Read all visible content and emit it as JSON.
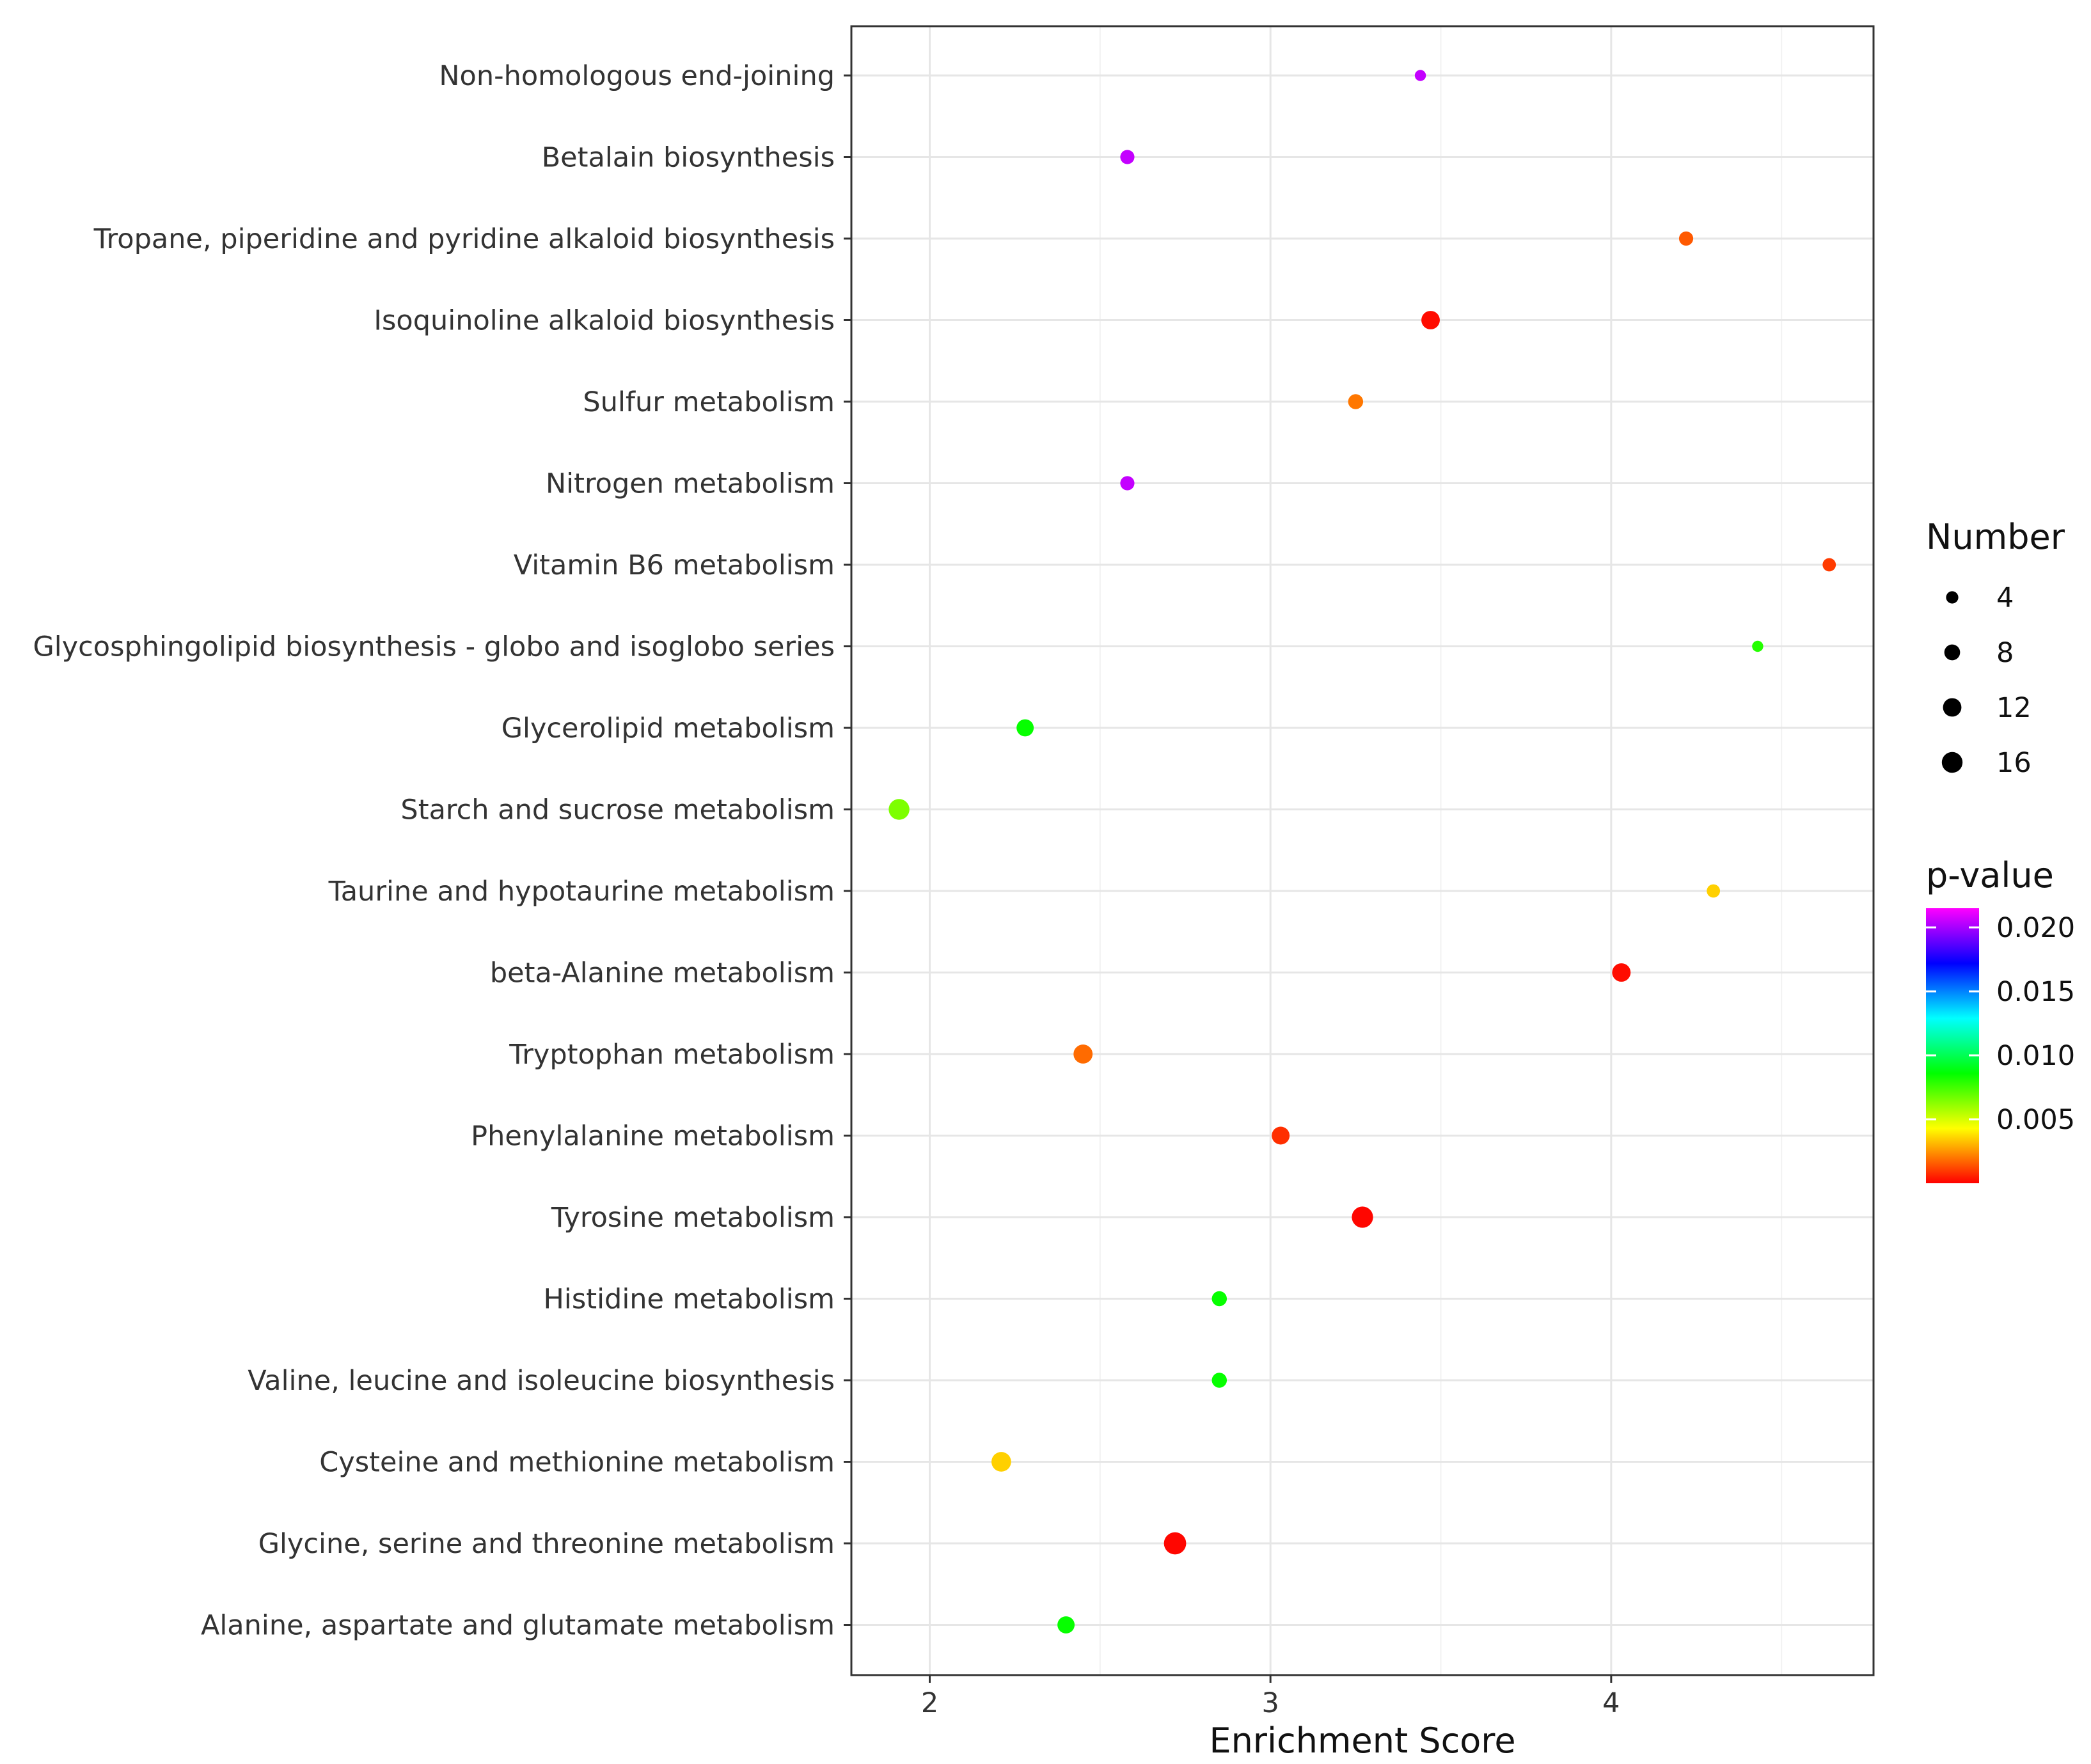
{
  "chart_data": {
    "type": "scatter",
    "title": "",
    "xlabel": "Enrichment Score",
    "ylabel": "",
    "xlim": [
      1.77,
      4.77
    ],
    "x_ticks": [
      2,
      3,
      4
    ],
    "x_tick_labels": [
      "2",
      "3",
      "4"
    ],
    "x_minor_ticks": [
      2.5,
      3.5,
      4.5
    ],
    "grid": true,
    "categories": [
      "Non-homologous end-joining",
      "Betalain biosynthesis",
      "Tropane, piperidine and pyridine alkaloid biosynthesis",
      "Isoquinoline alkaloid biosynthesis",
      "Sulfur metabolism",
      "Nitrogen metabolism",
      "Vitamin B6 metabolism",
      "Glycosphingolipid biosynthesis - globo and isoglobo series",
      "Glycerolipid metabolism",
      "Starch and sucrose metabolism",
      "Taurine and hypotaurine metabolism",
      "beta-Alanine metabolism",
      "Tryptophan metabolism",
      "Phenylalanine metabolism",
      "Tyrosine metabolism",
      "Histidine metabolism",
      "Valine, leucine and isoleucine biosynthesis",
      "Cysteine and methionine metabolism",
      "Glycine, serine and threonine metabolism",
      "Alanine, aspartate and glutamate metabolism"
    ],
    "points": [
      {
        "pathway": "Non-homologous end-joining",
        "enrichment_score": 3.44,
        "number": 3,
        "p_value": 0.0205
      },
      {
        "pathway": "Betalain biosynthesis",
        "enrichment_score": 2.58,
        "number": 6,
        "p_value": 0.0205
      },
      {
        "pathway": "Tropane, piperidine and pyridine alkaloid biosynthesis",
        "enrichment_score": 4.22,
        "number": 6,
        "p_value": 0.0015
      },
      {
        "pathway": "Isoquinoline alkaloid biosynthesis",
        "enrichment_score": 3.47,
        "number": 12,
        "p_value": 0.0002
      },
      {
        "pathway": "Sulfur metabolism",
        "enrichment_score": 3.25,
        "number": 7,
        "p_value": 0.002
      },
      {
        "pathway": "Nitrogen metabolism",
        "enrichment_score": 2.58,
        "number": 6,
        "p_value": 0.0205
      },
      {
        "pathway": "Vitamin B6 metabolism",
        "enrichment_score": 4.64,
        "number": 5,
        "p_value": 0.001
      },
      {
        "pathway": "Glycosphingolipid biosynthesis - globo and isoglobo series",
        "enrichment_score": 4.43,
        "number": 3,
        "p_value": 0.008
      },
      {
        "pathway": "Glycerolipid metabolism",
        "enrichment_score": 2.28,
        "number": 10,
        "p_value": 0.0085
      },
      {
        "pathway": "Starch and sucrose metabolism",
        "enrichment_score": 1.91,
        "number": 16,
        "p_value": 0.0065
      },
      {
        "pathway": "Taurine and hypotaurine metabolism",
        "enrichment_score": 4.3,
        "number": 5,
        "p_value": 0.0035
      },
      {
        "pathway": "beta-Alanine metabolism",
        "enrichment_score": 4.03,
        "number": 12,
        "p_value": 0.0002
      },
      {
        "pathway": "Tryptophan metabolism",
        "enrichment_score": 2.45,
        "number": 13,
        "p_value": 0.0018
      },
      {
        "pathway": "Phenylalanine metabolism",
        "enrichment_score": 3.03,
        "number": 11,
        "p_value": 0.0008
      },
      {
        "pathway": "Tyrosine metabolism",
        "enrichment_score": 3.27,
        "number": 17,
        "p_value": 0.0001
      },
      {
        "pathway": "Histidine metabolism",
        "enrichment_score": 2.85,
        "number": 7,
        "p_value": 0.0085
      },
      {
        "pathway": "Valine, leucine and isoleucine biosynthesis",
        "enrichment_score": 2.85,
        "number": 7,
        "p_value": 0.0085
      },
      {
        "pathway": "Cysteine and methionine metabolism",
        "enrichment_score": 2.21,
        "number": 14,
        "p_value": 0.0035
      },
      {
        "pathway": "Glycine, serine and threonine metabolism",
        "enrichment_score": 2.72,
        "number": 19,
        "p_value": 0.0001
      },
      {
        "pathway": "Alanine, aspartate and glutamate metabolism",
        "enrichment_score": 2.4,
        "number": 10,
        "p_value": 0.0085
      }
    ],
    "size_legend": {
      "title": "Number",
      "values": [
        4,
        8,
        12,
        16
      ],
      "labels": [
        "4",
        "8",
        "12",
        "16"
      ],
      "color": "#000000"
    },
    "color_legend": {
      "title": "p-value",
      "min": 0.0,
      "max": 0.0215,
      "ticks": [
        0.02,
        0.015,
        0.01,
        0.005
      ],
      "tick_labels": [
        "0.020",
        "0.015",
        "0.010",
        "0.005"
      ],
      "colors": [
        "#ff0000",
        "#ffff00",
        "#00ff00",
        "#00ffff",
        "#0000ff",
        "#ff00ff"
      ]
    }
  }
}
